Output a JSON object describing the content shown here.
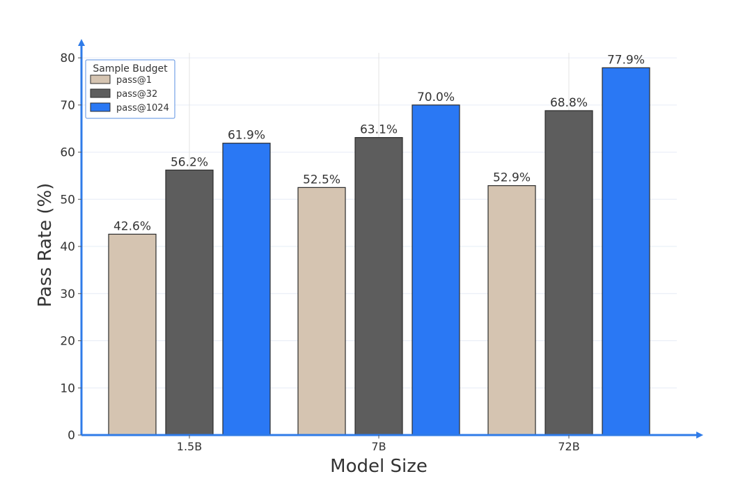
{
  "chart_data": {
    "type": "bar",
    "title": "",
    "xlabel": "Model Size",
    "ylabel": "Pass Rate (%)",
    "categories": [
      "1.5B",
      "7B",
      "72B"
    ],
    "series": [
      {
        "name": "pass@1",
        "color": "#d5c4b1",
        "values": [
          42.6,
          52.5,
          52.9
        ],
        "labels": [
          "42.6%",
          "52.5%",
          "52.9%"
        ]
      },
      {
        "name": "pass@32",
        "color": "#5d5d5d",
        "values": [
          56.2,
          63.1,
          68.8
        ],
        "labels": [
          "56.2%",
          "63.1%",
          "68.8%"
        ]
      },
      {
        "name": "pass@1024",
        "color": "#2a78f4",
        "values": [
          61.9,
          70.0,
          77.9
        ],
        "labels": [
          "61.9%",
          "70.0%",
          "77.9%"
        ]
      }
    ],
    "ylim": [
      0,
      84
    ],
    "yticks": [
      0,
      10,
      20,
      30,
      40,
      50,
      60,
      70,
      80
    ],
    "grid": true,
    "axis_color": "#2f7be8",
    "legend": {
      "title": "Sample Budget",
      "placement": "top-left"
    }
  }
}
